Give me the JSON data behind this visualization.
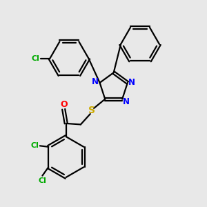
{
  "bg_color": "#e8e8e8",
  "bond_color": "#000000",
  "n_color": "#0000ff",
  "o_color": "#ff0000",
  "s_color": "#ccaa00",
  "cl_color": "#00aa00",
  "lw": 1.6,
  "xlim": [
    0,
    10
  ],
  "ylim": [
    0,
    10
  ]
}
